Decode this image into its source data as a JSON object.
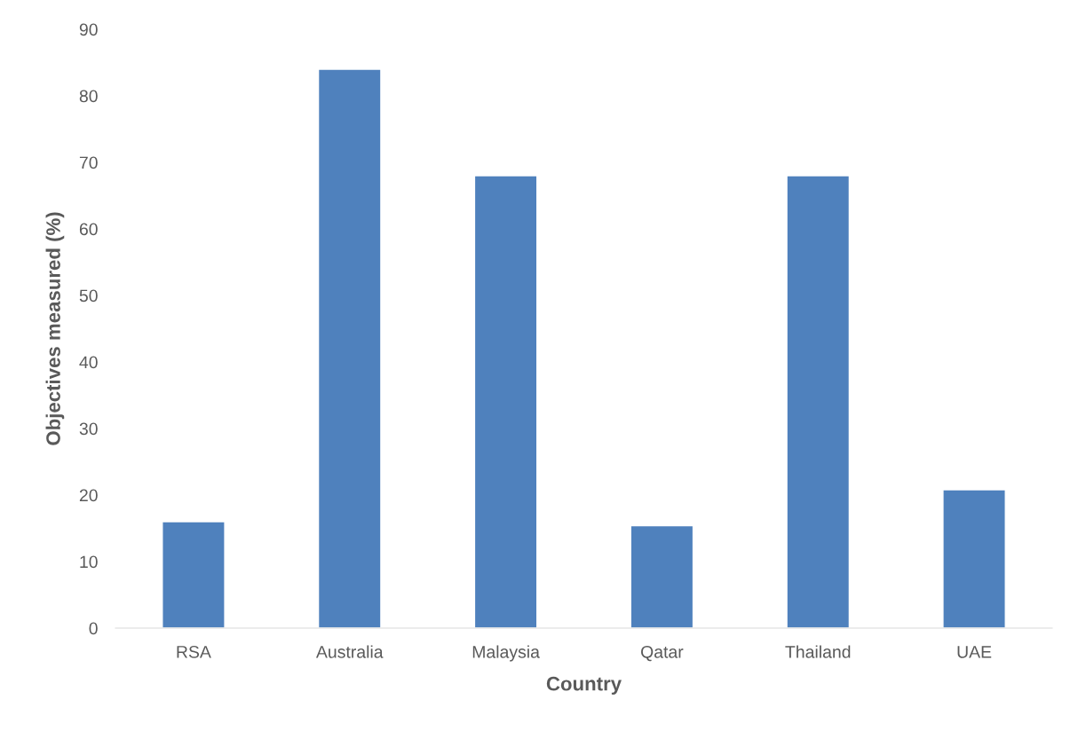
{
  "chart_data": {
    "type": "bar",
    "xlabel": "Country",
    "ylabel": "Objectives measured (%)",
    "categories": [
      "RSA",
      "Australia",
      "Malaysia",
      "Qatar",
      "Thailand",
      "UAE"
    ],
    "values": [
      16,
      84,
      68,
      15.4,
      68,
      20.8
    ],
    "color": "#4f81bd",
    "ylim": [
      0,
      90
    ],
    "yticks": [
      0,
      10,
      20,
      30,
      40,
      50,
      60,
      70,
      80,
      90
    ],
    "grid": false,
    "legend": false
  }
}
